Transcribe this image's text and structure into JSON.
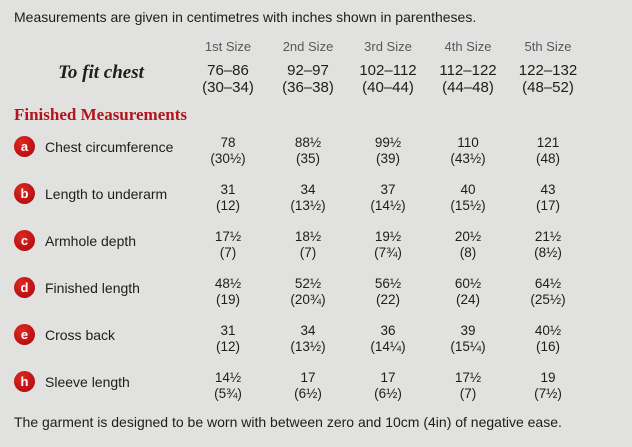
{
  "panel": {
    "intro": "Measurements are given in centimetres with inches shown in parentheses.",
    "footer": "The garment is designed to be worn with between zero and 10cm (4in) of negative ease."
  },
  "table": {
    "size_headers": [
      "1st Size",
      "2nd Size",
      "3rd Size",
      "4th Size",
      "5th Size"
    ],
    "to_fit_chest": {
      "label": "To fit chest",
      "cm": [
        "76–86",
        "92–97",
        "102–112",
        "112–122",
        "122–132"
      ],
      "in": [
        "(30–34)",
        "(36–38)",
        "(40–44)",
        "(44–48)",
        "(48–52)"
      ]
    },
    "section_heading": "Finished Measurements",
    "rows": [
      {
        "key": "a",
        "label": "Chest circumference",
        "cm": [
          "78",
          "88½",
          "99½",
          "110",
          "121"
        ],
        "in": [
          "(30½)",
          "(35)",
          "(39)",
          "(43½)",
          "(48)"
        ]
      },
      {
        "key": "b",
        "label": "Length to underarm",
        "cm": [
          "31",
          "34",
          "37",
          "40",
          "43"
        ],
        "in": [
          "(12)",
          "(13½)",
          "(14½)",
          "(15½)",
          "(17)"
        ]
      },
      {
        "key": "c",
        "label": "Armhole depth",
        "cm": [
          "17½",
          "18½",
          "19½",
          "20½",
          "21½"
        ],
        "in": [
          "(7)",
          "(7)",
          "(7¾)",
          "(8)",
          "(8½)"
        ]
      },
      {
        "key": "d",
        "label": "Finished length",
        "cm": [
          "48½",
          "52½",
          "56½",
          "60½",
          "64½"
        ],
        "in": [
          "(19)",
          "(20¾)",
          "(22)",
          "(24)",
          "(25½)"
        ]
      },
      {
        "key": "e",
        "label": "Cross back",
        "cm": [
          "31",
          "34",
          "36",
          "39",
          "40½"
        ],
        "in": [
          "(12)",
          "(13½)",
          "(14¼)",
          "(15¼)",
          "(16)"
        ]
      },
      {
        "key": "h",
        "label": "Sleeve length",
        "cm": [
          "14½",
          "17",
          "17",
          "17½",
          "19"
        ],
        "in": [
          "(5¾)",
          "(6½)",
          "(6½)",
          "(7)",
          "(7½)"
        ]
      }
    ]
  },
  "colors": {
    "background": "#e1e1df",
    "text": "#1d1d1b",
    "header_gray": "#58585a",
    "accent_red": "#c11418",
    "heading_red": "#b2151b"
  }
}
